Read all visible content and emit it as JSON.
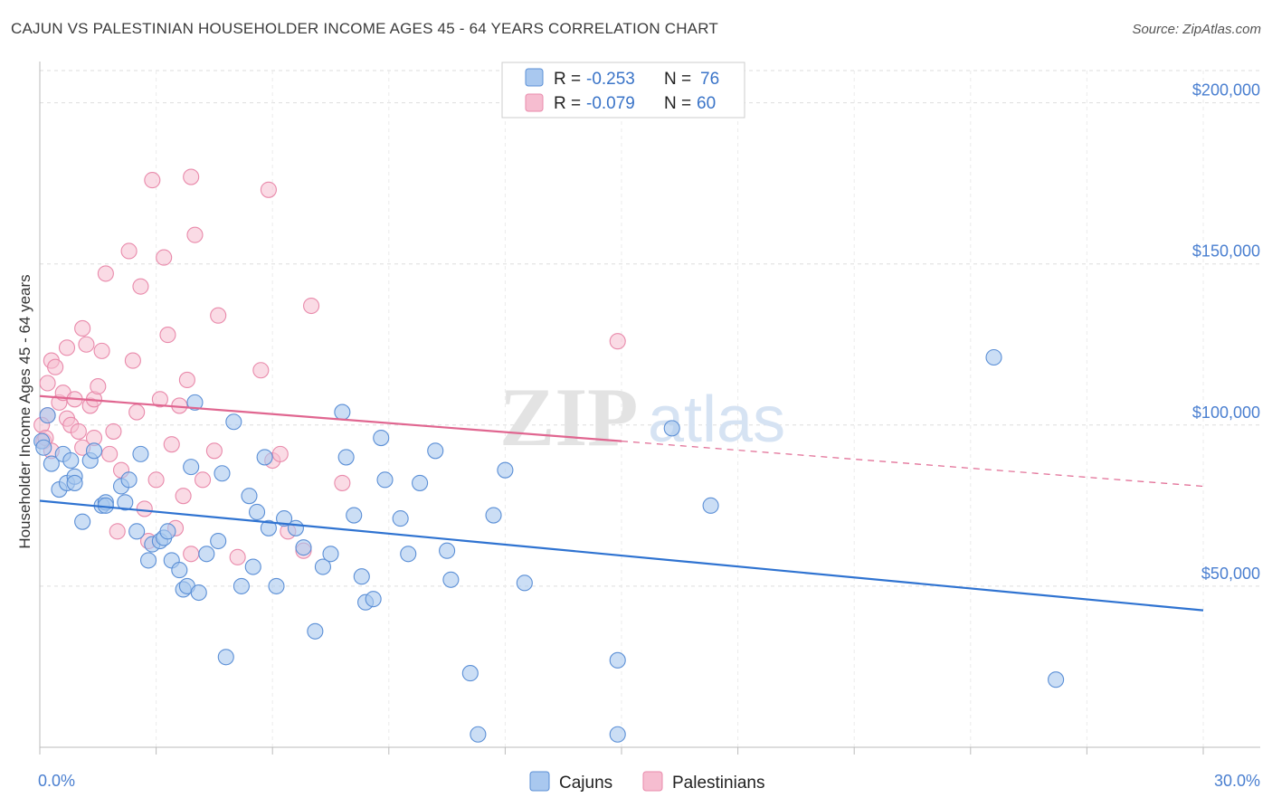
{
  "title": "CAJUN VS PALESTINIAN HOUSEHOLDER INCOME AGES 45 - 64 YEARS CORRELATION CHART",
  "source": "Source: ZipAtlas.com",
  "watermark": {
    "part1": "ZIP",
    "part2": "atlas"
  },
  "colors": {
    "cajun_fill": "#a9c8ef",
    "cajun_stroke": "#5b8fd6",
    "cajun_line": "#2f73d1",
    "pal_fill": "#f6bdd0",
    "pal_stroke": "#e98aab",
    "pal_line": "#e06690",
    "tick_text": "#4a7fd0",
    "grid": "#dddddd"
  },
  "legend": {
    "r_label": "R =",
    "n_label": "N =",
    "rows": [
      {
        "r": "-0.253",
        "n": "76"
      },
      {
        "r": "-0.079",
        "n": "60"
      }
    ]
  },
  "chart_data": {
    "type": "scatter",
    "xlabel": "",
    "ylabel": "Householder Income Ages 45 - 64 years",
    "xlim": [
      0,
      30
    ],
    "ylim": [
      0,
      210000
    ],
    "x_tick_labels": [
      "0.0%",
      "30.0%"
    ],
    "y_ticks": [
      50000,
      100000,
      150000,
      200000
    ],
    "y_tick_labels": [
      "$50,000",
      "$100,000",
      "$150,000",
      "$200,000"
    ],
    "grid": true,
    "legend_position": "top-center",
    "series": [
      {
        "name": "Cajuns",
        "r": -0.253,
        "n": 76,
        "trend": {
          "x0": 0,
          "y0": 76500,
          "x1": 30,
          "y1": 42500
        },
        "points": [
          [
            0.2,
            103000
          ],
          [
            0.3,
            88000
          ],
          [
            0.6,
            91000
          ],
          [
            0.5,
            80000
          ],
          [
            0.7,
            82000
          ],
          [
            0.8,
            89000
          ],
          [
            0.9,
            84000
          ],
          [
            0.9,
            82000
          ],
          [
            1.1,
            70000
          ],
          [
            1.3,
            89000
          ],
          [
            1.4,
            92000
          ],
          [
            1.6,
            75000
          ],
          [
            1.7,
            76000
          ],
          [
            1.7,
            75000
          ],
          [
            2.1,
            81000
          ],
          [
            2.3,
            83000
          ],
          [
            2.2,
            76000
          ],
          [
            2.5,
            67000
          ],
          [
            2.6,
            91000
          ],
          [
            2.8,
            58000
          ],
          [
            2.9,
            63000
          ],
          [
            3.1,
            64000
          ],
          [
            3.2,
            65000
          ],
          [
            3.3,
            67000
          ],
          [
            3.4,
            58000
          ],
          [
            3.6,
            55000
          ],
          [
            3.7,
            49000
          ],
          [
            3.8,
            50000
          ],
          [
            3.9,
            87000
          ],
          [
            4.0,
            107000
          ],
          [
            4.1,
            48000
          ],
          [
            4.3,
            60000
          ],
          [
            4.6,
            64000
          ],
          [
            4.7,
            85000
          ],
          [
            4.8,
            28000
          ],
          [
            5.0,
            101000
          ],
          [
            5.2,
            50000
          ],
          [
            5.4,
            78000
          ],
          [
            5.5,
            56000
          ],
          [
            5.6,
            73000
          ],
          [
            5.8,
            90000
          ],
          [
            5.9,
            68000
          ],
          [
            6.1,
            50000
          ],
          [
            6.3,
            71000
          ],
          [
            6.6,
            68000
          ],
          [
            6.8,
            62000
          ],
          [
            7.1,
            36000
          ],
          [
            7.3,
            56000
          ],
          [
            7.5,
            60000
          ],
          [
            7.8,
            104000
          ],
          [
            7.9,
            90000
          ],
          [
            8.1,
            72000
          ],
          [
            8.3,
            53000
          ],
          [
            8.4,
            45000
          ],
          [
            8.6,
            46000
          ],
          [
            8.8,
            96000
          ],
          [
            8.9,
            83000
          ],
          [
            9.3,
            71000
          ],
          [
            9.5,
            60000
          ],
          [
            9.8,
            82000
          ],
          [
            10.2,
            92000
          ],
          [
            10.5,
            61000
          ],
          [
            10.6,
            52000
          ],
          [
            11.1,
            23000
          ],
          [
            11.3,
            4000
          ],
          [
            11.7,
            72000
          ],
          [
            12.0,
            86000
          ],
          [
            12.5,
            51000
          ],
          [
            14.9,
            27000
          ],
          [
            14.9,
            4000
          ],
          [
            16.3,
            99000
          ],
          [
            17.3,
            75000
          ],
          [
            24.6,
            121000
          ],
          [
            26.2,
            21000
          ],
          [
            0.05,
            95000
          ],
          [
            0.1,
            93000
          ]
        ]
      },
      {
        "name": "Palestinians",
        "r": -0.079,
        "n": 60,
        "trend": {
          "x0": 0,
          "y0": 109000,
          "x1": 15,
          "y1": 95000,
          "x2": 30,
          "y2": 81000
        },
        "points": [
          [
            0.1,
            95000
          ],
          [
            0.2,
            103000
          ],
          [
            0.2,
            113000
          ],
          [
            0.3,
            120000
          ],
          [
            0.4,
            118000
          ],
          [
            0.5,
            107000
          ],
          [
            0.6,
            110000
          ],
          [
            0.7,
            124000
          ],
          [
            0.7,
            102000
          ],
          [
            0.8,
            100000
          ],
          [
            0.9,
            108000
          ],
          [
            1.0,
            98000
          ],
          [
            1.1,
            93000
          ],
          [
            1.1,
            130000
          ],
          [
            1.2,
            125000
          ],
          [
            1.3,
            106000
          ],
          [
            1.4,
            108000
          ],
          [
            1.4,
            96000
          ],
          [
            1.5,
            112000
          ],
          [
            1.6,
            123000
          ],
          [
            1.7,
            147000
          ],
          [
            1.8,
            91000
          ],
          [
            1.9,
            98000
          ],
          [
            2.0,
            67000
          ],
          [
            2.1,
            86000
          ],
          [
            2.3,
            154000
          ],
          [
            2.4,
            120000
          ],
          [
            2.5,
            104000
          ],
          [
            2.6,
            143000
          ],
          [
            2.7,
            74000
          ],
          [
            2.8,
            64000
          ],
          [
            2.9,
            176000
          ],
          [
            3.0,
            83000
          ],
          [
            3.1,
            108000
          ],
          [
            3.2,
            152000
          ],
          [
            3.3,
            128000
          ],
          [
            3.4,
            94000
          ],
          [
            3.5,
            68000
          ],
          [
            3.6,
            106000
          ],
          [
            3.7,
            78000
          ],
          [
            3.8,
            114000
          ],
          [
            3.9,
            60000
          ],
          [
            3.9,
            177000
          ],
          [
            4.0,
            159000
          ],
          [
            4.2,
            83000
          ],
          [
            4.5,
            92000
          ],
          [
            4.6,
            134000
          ],
          [
            5.1,
            59000
          ],
          [
            5.7,
            117000
          ],
          [
            5.9,
            173000
          ],
          [
            6.0,
            89000
          ],
          [
            6.2,
            91000
          ],
          [
            6.4,
            67000
          ],
          [
            6.8,
            61000
          ],
          [
            7.0,
            137000
          ],
          [
            7.8,
            82000
          ],
          [
            14.9,
            126000
          ],
          [
            0.05,
            100000
          ],
          [
            0.15,
            96000
          ],
          [
            0.3,
            92000
          ]
        ]
      }
    ]
  }
}
